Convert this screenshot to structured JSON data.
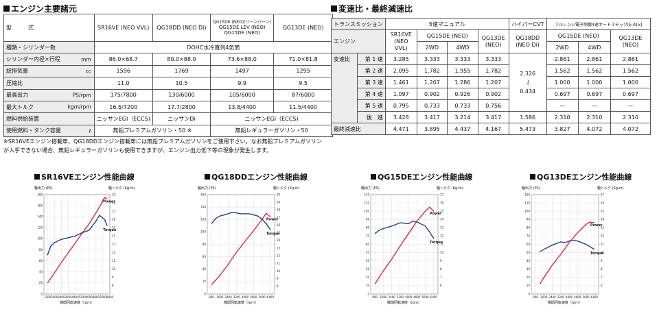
{
  "specs": {
    "title": "エンジン主要諸元",
    "header": {
      "label": "型　式",
      "col1": "SR16VE (NEO VVL)",
      "col2": "QG18DD (NEO Di)",
      "col3_lines": [
        "QG15DE (NEO)(リーンバーン)",
        "QG15DE LEV (NEO)",
        "QG15DE (NEO)"
      ],
      "col4": "QG13DE (NEO)"
    },
    "rows": [
      {
        "label": "種類・シリンダー数",
        "unit": "",
        "span_value": "DOHC水冷直列4気筒"
      },
      {
        "label": "シリンダー内径×行程",
        "unit": "mm",
        "values": [
          "86.0×68.7",
          "80.0×88.0",
          "73.6×88.0",
          "71.0×81.8"
        ]
      },
      {
        "label": "総排気量",
        "unit": "cc",
        "values": [
          "1596",
          "1769",
          "1497",
          "1295"
        ]
      },
      {
        "label": "圧縮比",
        "unit": "",
        "values": [
          "11.0",
          "10.5",
          "9.9",
          "9.5"
        ]
      },
      {
        "label": "最高出力",
        "unit": "PS/rpm",
        "values": [
          "175/7800",
          "130/6000",
          "105/6000",
          "87/6000"
        ]
      },
      {
        "label": "最大トルク",
        "unit": "kgm/rpm",
        "values": [
          "16.5/7200",
          "17.7/2800",
          "13.8/4400",
          "11.5/4400"
        ]
      }
    ],
    "fuel_supply": {
      "label": "燃料供給装置",
      "v1": "ニッサンEGI（ECCS)",
      "v2": "ニッサンDi",
      "v34": "ニッサンEGI（ECCS)"
    },
    "fuel_tank": {
      "label": "使用燃料・タンク容量",
      "unit": "ℓ",
      "v12": "無鉛プレミアムガソリン・50 ※",
      "v34": "無鉛レギュラーガソリン・50"
    }
  },
  "footnote": "※SR16VEエンジン搭載車、QG18DDエンジン搭載車には無鉛プレミアムガソリンをご使用下さい。なお無鉛プレミアムガソリンが入手できない場合、無鉛レギュラーガソリンも使用できますが、エンジン出力低下等の現象が発生します。",
  "transmission": {
    "title": "変速比・最終減速比",
    "hdr_transmission": "トランスミッション",
    "hdr_5mt": "5速マニュアル",
    "hdr_cvt": "ハイパーCVT",
    "hdr_4at": "フルレンジ電子制御4速オートマチック[E-ATx]",
    "hdr_engine": "エンジン",
    "sr16": "SR16VE (NEO VVL)",
    "qg15_mt": "QG15DE (NEO)",
    "qg13_mt": "QG13DE (NEO)",
    "qg18": "QG18DD (NEO Di)",
    "qg15_at": "QG15DE (NEO)",
    "qg13_at": "QG13DE (NEO)",
    "w2": "2WD",
    "w4": "4WD",
    "ratio_label": "変速比",
    "gears": [
      {
        "label": "第 1 速",
        "vals": [
          "3.285",
          "3.333",
          "3.333",
          "3.333"
        ],
        "at": [
          "2.861",
          "2.861",
          "2.861"
        ]
      },
      {
        "label": "第 2 速",
        "vals": [
          "2.095",
          "1.782",
          "1.955",
          "1.782"
        ],
        "at": [
          "1.562",
          "1.562",
          "1.562"
        ]
      },
      {
        "label": "第 3 速",
        "vals": [
          "1.461",
          "1.207",
          "1.286",
          "1.207"
        ],
        "at": [
          "1.000",
          "1.000",
          "1.000"
        ]
      },
      {
        "label": "第 4 速",
        "vals": [
          "1.097",
          "0.902",
          "0.926",
          "0.902"
        ],
        "at": [
          "0.697",
          "0.697",
          "0.697"
        ]
      },
      {
        "label": "第 5 速",
        "vals": [
          "0.795",
          "0.733",
          "0.733",
          "0.756"
        ],
        "at": [
          "—",
          "—",
          "—"
        ]
      },
      {
        "label": "後　進",
        "vals": [
          "3.428",
          "3.417",
          "3.214",
          "3.417"
        ],
        "at": [
          "2.310",
          "2.310",
          "2.310"
        ]
      }
    ],
    "cvt_top": "2.326",
    "cvt_tilde": "〜",
    "cvt_bottom": "0.434",
    "cvt_reverse": "1.586",
    "final_label": "最終減速比",
    "final_vals": [
      "4.471",
      "3.895",
      "4.437",
      "4.167"
    ],
    "final_cvt": "5.473",
    "final_at": [
      "3.827",
      "4.072",
      "4.072"
    ]
  },
  "chart_data": [
    {
      "type": "line",
      "title": "SR16VEエンジン性能曲線",
      "xlabel": "機関回転速度（rpm）",
      "ylabel_left": "軸出力 (PS)",
      "ylabel_right": "軸トルク (Kg-m)",
      "x_ticks": [
        "1200",
        "2000",
        "2800",
        "3600",
        "4400",
        "5200",
        "6000",
        "6800",
        "7600",
        "8400"
      ],
      "xlim": [
        800,
        8400
      ],
      "y_left_ticks": [
        "0",
        "20",
        "40",
        "60",
        "80",
        "100",
        "120",
        "140",
        "160",
        "180"
      ],
      "ylim_left": [
        0,
        180
      ],
      "y_right_ticks": [
        "8",
        "9",
        "10",
        "11",
        "12",
        "13",
        "14",
        "15",
        "16",
        "17",
        "18",
        "19"
      ],
      "ylim_right": [
        7,
        19
      ],
      "series": [
        {
          "name": "Power",
          "color": "#e4263a",
          "axis": "left",
          "x": [
            1200,
            2000,
            2800,
            3600,
            4400,
            5200,
            6000,
            6800,
            7400,
            7800,
            8100
          ],
          "y": [
            20,
            38,
            57,
            75,
            92,
            110,
            127,
            147,
            163,
            175,
            172
          ]
        },
        {
          "name": "Torque",
          "color": "#1f3b8c",
          "axis": "right",
          "x": [
            1200,
            1600,
            2000,
            2800,
            3600,
            4400,
            5200,
            6000,
            6800,
            7200,
            7800,
            8100
          ],
          "y": [
            11.7,
            12.8,
            13.2,
            13.6,
            13.8,
            14.0,
            14.4,
            14.7,
            15.8,
            16.5,
            16.0,
            15.2
          ]
        }
      ]
    },
    {
      "type": "line",
      "title": "QG18DDエンジン性能曲線",
      "xlabel": "機関回転速度（rpm）",
      "ylabel_left": "軸出力 (PS)",
      "ylabel_right": "軸トルク (Kg-m)",
      "x_ticks": [
        "800",
        "1600",
        "2400",
        "3200",
        "4000",
        "4800",
        "5600",
        "6400"
      ],
      "xlim": [
        400,
        6800
      ],
      "y_left_ticks": [
        "0",
        "20",
        "40",
        "60",
        "80",
        "100",
        "120",
        "140",
        "160"
      ],
      "ylim_left": [
        0,
        160
      ],
      "y_right_ticks": [
        "8",
        "9",
        "10",
        "11",
        "12",
        "13",
        "14",
        "15",
        "16",
        "17",
        "18",
        "19",
        "20"
      ],
      "ylim_right": [
        7,
        20
      ],
      "series": [
        {
          "name": "Power",
          "color": "#e4263a",
          "axis": "left",
          "x": [
            800,
            1600,
            2400,
            3200,
            4000,
            4800,
            5600,
            6000,
            6400
          ],
          "y": [
            15,
            30,
            48,
            68,
            85,
            102,
            120,
            130,
            124
          ]
        },
        {
          "name": "Torque",
          "color": "#1f3b8c",
          "axis": "right",
          "x": [
            800,
            1200,
            1600,
            2400,
            2800,
            3600,
            4400,
            5200,
            5600,
            6000,
            6400
          ],
          "y": [
            16.2,
            16.9,
            17.2,
            17.5,
            17.7,
            17.5,
            17.5,
            17.2,
            16.8,
            16.2,
            15.4
          ]
        }
      ]
    },
    {
      "type": "line",
      "title": "QG15DEエンジン性能曲線",
      "xlabel": "機関回転速度（rpm）",
      "ylabel_left": "軸出力 (PS)",
      "ylabel_right": "軸トルク (Kg-m)",
      "x_ticks": [
        "800",
        "1600",
        "2400",
        "3200",
        "4000",
        "4800",
        "5600",
        "6400"
      ],
      "xlim": [
        400,
        6800
      ],
      "y_left_ticks": [
        "0",
        "10",
        "20",
        "30",
        "40",
        "50",
        "60",
        "70",
        "80",
        "90",
        "100",
        "110",
        "120"
      ],
      "ylim_left": [
        0,
        120
      ],
      "y_right_ticks": [
        "6",
        "7",
        "8",
        "9",
        "10",
        "11",
        "12",
        "13",
        "14",
        "15",
        "16",
        "17"
      ],
      "ylim_right": [
        5,
        17
      ],
      "series": [
        {
          "name": "Power",
          "color": "#e4263a",
          "axis": "left",
          "x": [
            800,
            1600,
            2400,
            3200,
            4000,
            4800,
            5600,
            6000,
            6400
          ],
          "y": [
            12,
            28,
            42,
            58,
            73,
            88,
            100,
            105,
            100
          ]
        },
        {
          "name": "Torque",
          "color": "#1f3b8c",
          "axis": "right",
          "x": [
            800,
            1200,
            1600,
            2400,
            3200,
            4000,
            4400,
            4800,
            5600,
            6000,
            6400
          ],
          "y": [
            12.3,
            12.7,
            12.9,
            13.2,
            13.6,
            13.5,
            13.8,
            13.7,
            13.2,
            12.5,
            11.7
          ]
        }
      ]
    },
    {
      "type": "line",
      "title": "QG13DEエンジン性能曲線",
      "xlabel": "機関回転速度（rpm）",
      "ylabel_left": "軸出力 (PS)",
      "ylabel_right": "軸トルク (Kg-m)",
      "x_ticks": [
        "800",
        "1600",
        "2400",
        "3200",
        "4000",
        "4800",
        "5600",
        "6400"
      ],
      "xlim": [
        400,
        6800
      ],
      "y_left_ticks": [
        "0",
        "10",
        "20",
        "30",
        "40",
        "50",
        "60",
        "70",
        "80",
        "90",
        "100",
        "110",
        "120"
      ],
      "ylim_left": [
        0,
        120
      ],
      "y_right_ticks": [
        "6",
        "7",
        "8",
        "9",
        "10",
        "11",
        "12",
        "13",
        "14",
        "15",
        "16",
        "17"
      ],
      "ylim_right": [
        5,
        17
      ],
      "series": [
        {
          "name": "Power",
          "color": "#e4263a",
          "axis": "left",
          "x": [
            1200,
            1600,
            2400,
            3200,
            4000,
            4800,
            5600,
            6000,
            6400
          ],
          "y": [
            12,
            20,
            35,
            48,
            62,
            74,
            84,
            87,
            86
          ]
        },
        {
          "name": "Torque",
          "color": "#1f3b8c",
          "axis": "right",
          "x": [
            1200,
            1600,
            2400,
            3200,
            3600,
            4000,
            4400,
            4800,
            5600,
            6000,
            6400
          ],
          "y": [
            10.1,
            10.4,
            10.9,
            11.3,
            11.2,
            11.4,
            11.5,
            11.4,
            11.0,
            10.7,
            10.4
          ]
        }
      ]
    }
  ]
}
